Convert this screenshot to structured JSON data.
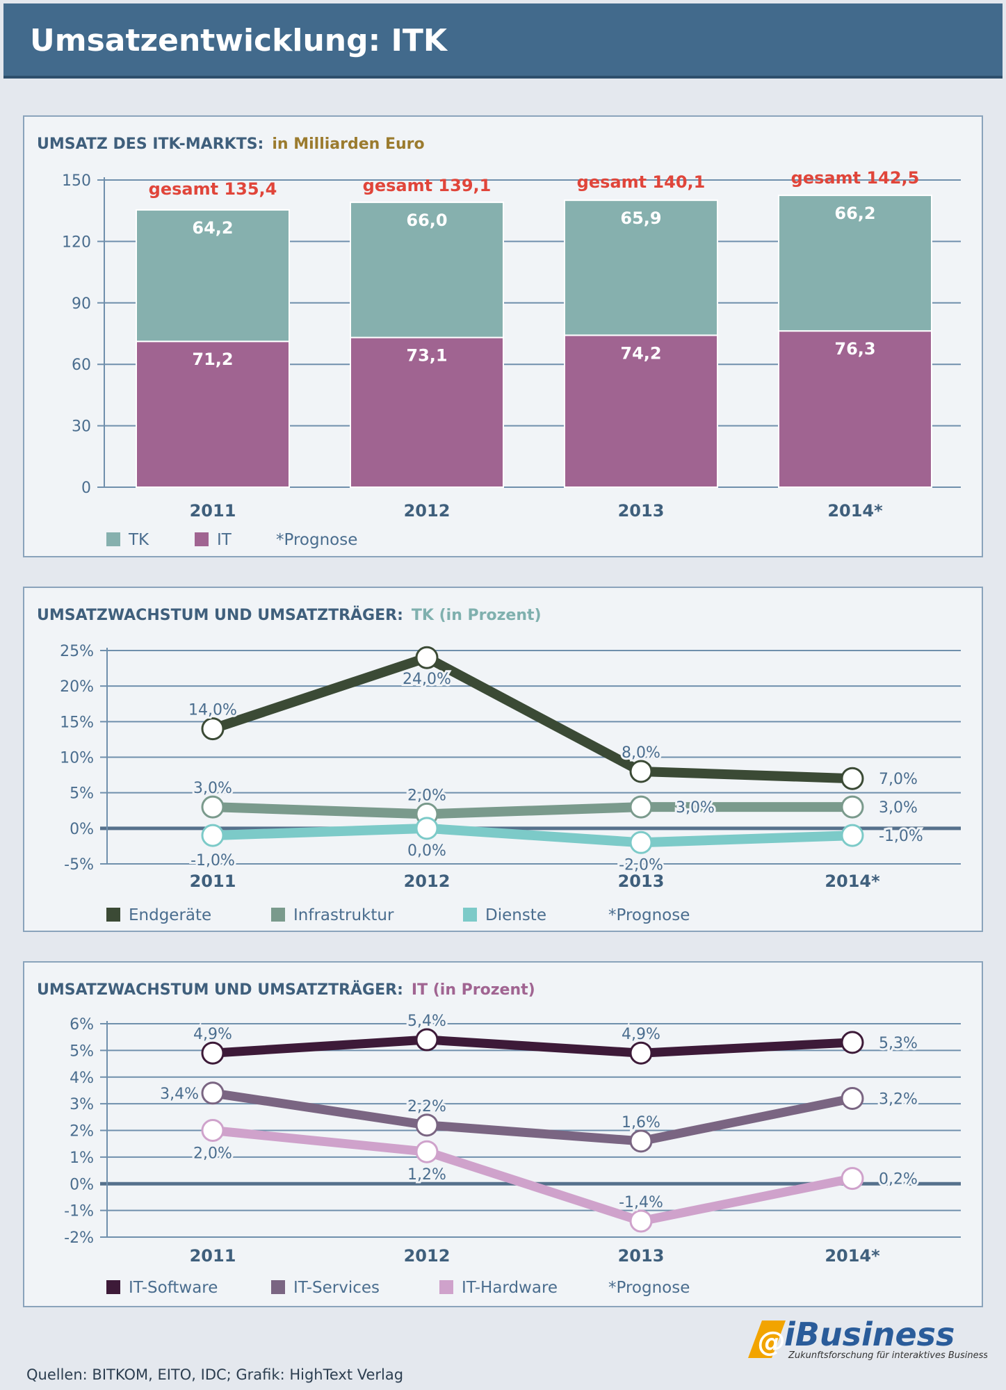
{
  "header": {
    "title": "Umsatzentwicklung: ITK"
  },
  "footer": {
    "sources": "Quellen: BITKOM, EITO, IDC; Grafik: HighText Verlag"
  },
  "logo": {
    "text": "iBusiness",
    "tagline": "Zukunftsforschung für interaktives Business"
  },
  "colors": {
    "tk": "#86b0ae",
    "it": "#a06491"
  },
  "chart_data": [
    {
      "type": "bar",
      "stacked": true,
      "title": "UMSATZ DES ITK-MARKTS:",
      "subtitle": "in Milliarden Euro",
      "categories": [
        "2011",
        "2012",
        "2013",
        "2014*"
      ],
      "ylim": [
        0,
        150
      ],
      "yticks": [
        0,
        30,
        60,
        90,
        120,
        150
      ],
      "ytick_labels": [
        "0",
        "30",
        "60",
        "90",
        "120",
        "150"
      ],
      "series": [
        {
          "name": "IT",
          "color": "#a06491",
          "values": [
            71.2,
            73.1,
            74.2,
            76.3
          ],
          "labels": [
            "71,2",
            "73,1",
            "74,2",
            "76,3"
          ]
        },
        {
          "name": "TK",
          "color": "#86b0ae",
          "values": [
            64.2,
            66.0,
            65.9,
            66.2
          ],
          "labels": [
            "64,2",
            "66,0",
            "65,9",
            "66,2"
          ]
        }
      ],
      "totals": [
        135.4,
        139.1,
        140.1,
        142.5
      ],
      "total_labels": [
        "gesamt 135,4",
        "gesamt 139,1",
        "gesamt 140,1",
        "gesamt 142,5"
      ],
      "legend": [
        {
          "name": "TK",
          "color": "#86b0ae"
        },
        {
          "name": "IT",
          "color": "#a06491"
        }
      ],
      "note": "*Prognose",
      "grid": true,
      "legend_position": "bottom-left"
    },
    {
      "type": "line",
      "title": "UMSATZWACHSTUM UND UMSATZTRÄGER:",
      "subtitle": "TK (in Prozent)",
      "subtitle_color": "#7fb0ae",
      "categories": [
        "2011",
        "2012",
        "2013",
        "2014*"
      ],
      "ylim": [
        -5,
        25
      ],
      "yticks": [
        -5,
        0,
        5,
        10,
        15,
        20,
        25
      ],
      "ytick_labels": [
        "-5%",
        "0%",
        "5%",
        "10%",
        "15%",
        "20%",
        "25%"
      ],
      "series": [
        {
          "name": "Endgeräte",
          "color": "#3b4a35",
          "values": [
            14.0,
            24.0,
            8.0,
            7.0
          ],
          "labels": [
            "14,0%",
            "24,0%",
            "8,0%",
            "7,0%"
          ]
        },
        {
          "name": "Infrastruktur",
          "color": "#7a9a8c",
          "values": [
            3.0,
            2.0,
            3.0,
            3.0
          ],
          "labels": [
            "3,0%",
            "2,0%",
            "3,0%",
            "3,0%"
          ]
        },
        {
          "name": "Dienste",
          "color": "#7ccac8",
          "values": [
            -1.0,
            0.0,
            -2.0,
            -1.0
          ],
          "labels": [
            "-1,0%",
            "0,0%",
            "-2,0%",
            "-1,0%"
          ]
        }
      ],
      "note": "*Prognose",
      "grid": true,
      "legend_position": "bottom-left"
    },
    {
      "type": "line",
      "title": "UMSATZWACHSTUM UND UMSATZTRÄGER:",
      "subtitle": "IT (in Prozent)",
      "subtitle_color": "#a06491",
      "categories": [
        "2011",
        "2012",
        "2013",
        "2014*"
      ],
      "ylim": [
        -2,
        6
      ],
      "yticks": [
        -2,
        -1,
        0,
        1,
        2,
        3,
        4,
        5,
        6
      ],
      "ytick_labels": [
        "-2%",
        "-1%",
        "0%",
        "1%",
        "2%",
        "3%",
        "4%",
        "5%",
        "6%"
      ],
      "series": [
        {
          "name": "IT-Software",
          "color": "#3d1a38",
          "values": [
            4.9,
            5.4,
            4.9,
            5.3
          ],
          "labels": [
            "4,9%",
            "5,4%",
            "4,9%",
            "5,3%"
          ]
        },
        {
          "name": "IT-Services",
          "color": "#7a6582",
          "values": [
            3.4,
            2.2,
            1.6,
            3.2
          ],
          "labels": [
            "3,4%",
            "2,2%",
            "1,6%",
            "3,2%"
          ]
        },
        {
          "name": "IT-Hardware",
          "color": "#cfa2cb",
          "values": [
            2.0,
            1.2,
            -1.4,
            0.2
          ],
          "labels": [
            "2,0%",
            "1,2%",
            "-1,4%",
            "0,2%"
          ]
        }
      ],
      "note": "*Prognose",
      "grid": true,
      "legend_position": "bottom-left"
    }
  ]
}
